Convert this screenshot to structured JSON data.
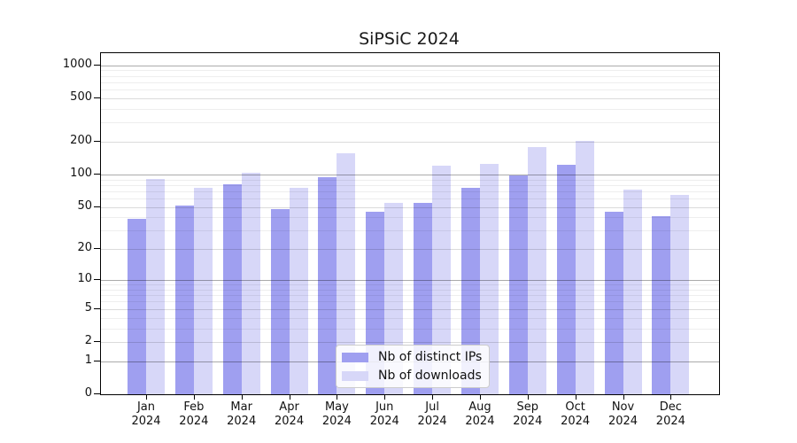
{
  "chart_data": {
    "type": "bar",
    "title": "SiPSiC 2024",
    "yscale": "symlog",
    "ylim": [
      0,
      1290
    ],
    "grid": true,
    "legend_position": "lower center",
    "categories": [
      "Jan 2024",
      "Feb 2024",
      "Mar 2024",
      "Apr 2024",
      "May 2024",
      "Jun 2024",
      "Jul 2024",
      "Aug 2024",
      "Sep 2024",
      "Oct 2024",
      "Nov 2024",
      "Dec 2024"
    ],
    "y_ticks": [
      0,
      1,
      2,
      5,
      10,
      20,
      50,
      100,
      200,
      500,
      1000
    ],
    "series": [
      {
        "name": "Nb of distinct IPs",
        "color": "#9f9ff0",
        "values": [
          39,
          52,
          82,
          48,
          94,
          45,
          55,
          76,
          98,
          122,
          45,
          41
        ]
      },
      {
        "name": "Nb of downloads",
        "color": "#d7d7f8",
        "values": [
          91,
          76,
          103,
          75,
          158,
          55,
          120,
          126,
          178,
          205,
          73,
          65
        ]
      }
    ]
  }
}
